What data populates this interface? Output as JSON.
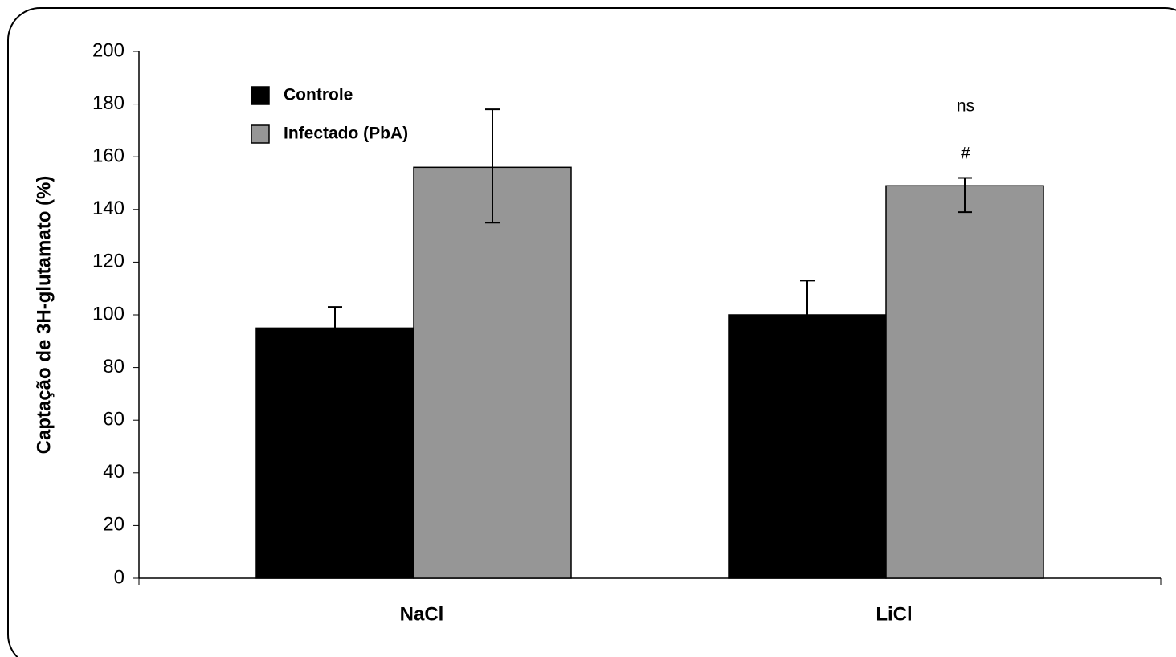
{
  "chart_data": {
    "type": "bar",
    "ylabel": "Captação de 3H-glutamato (%)",
    "categories": [
      "NaCl",
      "LiCl"
    ],
    "series": [
      {
        "name": "Controle",
        "color": "#000000",
        "values": [
          95,
          100
        ],
        "errors_upper": [
          8,
          13
        ],
        "errors_lower": [
          8,
          13
        ]
      },
      {
        "name": "Infectado (PbA)",
        "color": "#969696",
        "values": [
          156,
          149
        ],
        "errors_upper": [
          22,
          3
        ],
        "errors_lower": [
          21,
          10
        ]
      }
    ],
    "annotations": [
      "ns",
      "#"
    ],
    "ylim": [
      0,
      200
    ],
    "yticks": [
      0,
      20,
      40,
      60,
      80,
      100,
      120,
      140,
      160,
      180,
      200
    ],
    "grid": false,
    "legend": "upper left"
  }
}
